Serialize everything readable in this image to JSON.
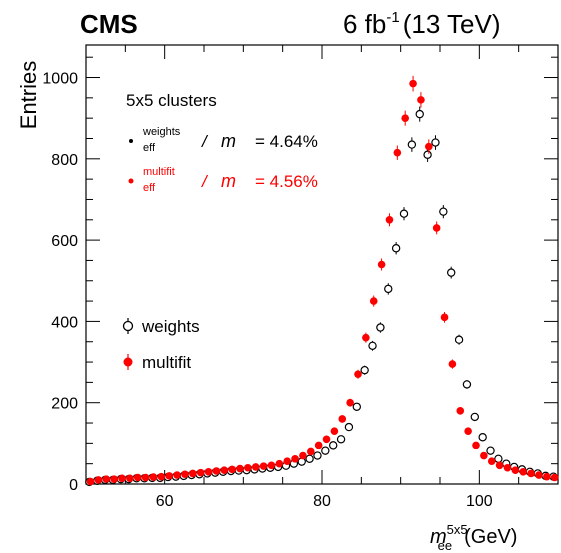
{
  "chart_data": {
    "type": "scatter",
    "experiment": "CMS",
    "luminosity": {
      "value": "6 fb",
      "exponent": "-1",
      "energy": "(13 TeV)"
    },
    "ylabel": "Entries",
    "xlabel": {
      "main": "m",
      "sub": "ee",
      "sup": "5x5",
      "unit": "(GeV)"
    },
    "xlim": [
      50,
      110
    ],
    "ylim": [
      0,
      1080
    ],
    "xticks": [
      60,
      80,
      100
    ],
    "yticks": [
      0,
      200,
      400,
      600,
      800,
      1000
    ],
    "legend_placement": "left",
    "annotations": {
      "title": "5x5 clusters",
      "res_weights": {
        "sup": "weights",
        "sub": "eff",
        "mid": "/",
        "var": "m",
        "value": "= 4.64%",
        "color": "#000000"
      },
      "res_multifit": {
        "sup": "multifit",
        "sub": "eff",
        "mid": "/",
        "var": "m",
        "value": "= 4.56%",
        "color": "#ff0000"
      }
    },
    "series": [
      {
        "name": "weights",
        "marker": "open-circle",
        "color": "#000000",
        "x": [
          50.5,
          51.5,
          52.5,
          53.5,
          54.5,
          55.5,
          56.5,
          57.5,
          58.5,
          59.5,
          60.5,
          61.5,
          62.5,
          63.5,
          64.5,
          65.5,
          66.5,
          67.5,
          68.5,
          69.5,
          70.5,
          71.5,
          72.5,
          73.5,
          74.5,
          75.5,
          76.5,
          77.5,
          78.5,
          79.5,
          80.5,
          81.5,
          82.5,
          83.5,
          84.5,
          85.5,
          86.5,
          87.5,
          88.5,
          89.5,
          90.5,
          91.5,
          92.5,
          93.5,
          94.5,
          95.5,
          96.5,
          97.5,
          98.5,
          99.5,
          100.5,
          101.5,
          102.5,
          103.5,
          104.5,
          105.5,
          106.5,
          107.5,
          108.5,
          109.5
        ],
        "y": [
          5,
          8,
          10,
          10,
          12,
          12,
          14,
          14,
          15,
          15,
          17,
          18,
          20,
          22,
          24,
          26,
          28,
          30,
          32,
          33,
          34,
          36,
          38,
          40,
          42,
          45,
          50,
          55,
          62,
          70,
          82,
          95,
          110,
          140,
          190,
          280,
          340,
          385,
          480,
          580,
          665,
          835,
          910,
          810,
          840,
          670,
          520,
          355,
          245,
          165,
          115,
          82,
          62,
          50,
          42,
          36,
          30,
          26,
          20,
          18
        ]
      },
      {
        "name": "multifit",
        "marker": "filled-circle",
        "color": "#ff0000",
        "x": [
          50.5,
          51.5,
          52.5,
          53.5,
          54.5,
          55.5,
          56.5,
          57.5,
          58.5,
          59.5,
          60.5,
          61.5,
          62.5,
          63.5,
          64.5,
          65.5,
          66.5,
          67.5,
          68.5,
          69.5,
          70.5,
          71.5,
          72.5,
          73.5,
          74.5,
          75.5,
          76.5,
          77.5,
          78.5,
          79.5,
          80.5,
          81.5,
          82.5,
          83.5,
          84.5,
          85.5,
          86.5,
          87.5,
          88.5,
          89.5,
          90.5,
          91.5,
          92.5,
          93.5,
          94.5,
          95.5,
          96.5,
          97.5,
          98.5,
          99.5,
          100.5,
          101.5,
          102.5,
          103.5,
          104.5,
          105.5,
          106.5,
          107.5,
          108.5,
          109.5
        ],
        "y": [
          6,
          10,
          12,
          12,
          14,
          14,
          16,
          16,
          17,
          18,
          20,
          22,
          24,
          26,
          28,
          30,
          32,
          34,
          36,
          38,
          40,
          42,
          44,
          46,
          50,
          56,
          62,
          70,
          80,
          95,
          110,
          130,
          160,
          200,
          270,
          360,
          450,
          540,
          650,
          815,
          900,
          985,
          945,
          830,
          630,
          410,
          295,
          180,
          130,
          95,
          70,
          56,
          46,
          40,
          34,
          30,
          26,
          22,
          18,
          16
        ]
      }
    ]
  }
}
